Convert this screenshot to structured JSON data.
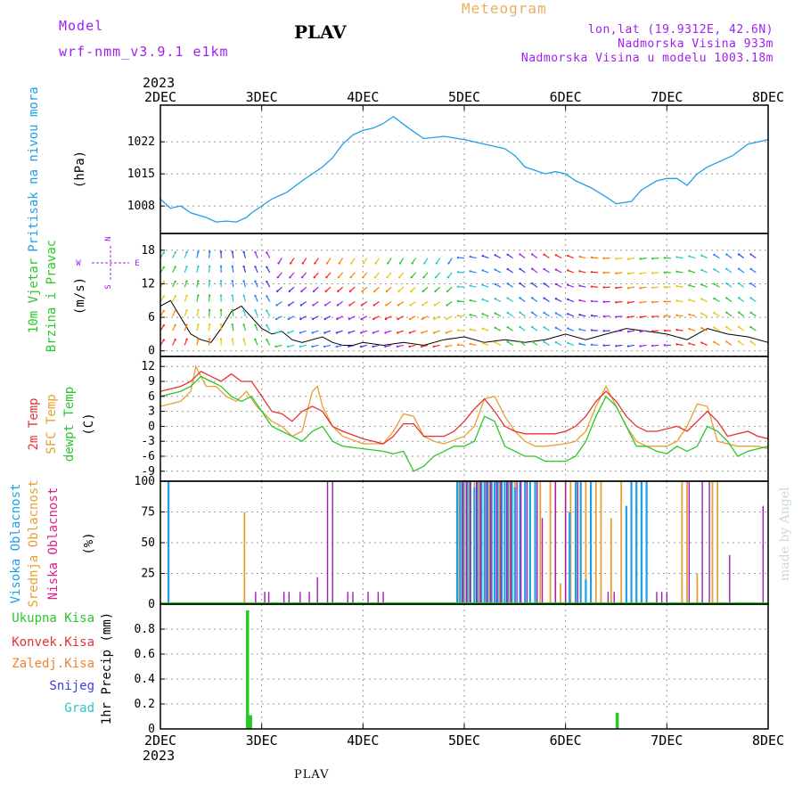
{
  "header": {
    "model_label": "Model",
    "model_name": "wrf-nmm_v3.9.1 e1km",
    "station": "PLAV",
    "meteogram_label": "Meteogram",
    "lonlat": "lon,lat (19.9312E, 42.6N)",
    "elevation": "Nadmorska Visina 933m",
    "model_elevation": "Nadmorska Visina u modelu 1003.18m"
  },
  "footer": {
    "station": "PLAV",
    "credit": "made by Angel"
  },
  "time_axis": {
    "year": "2023",
    "ticks": [
      "2DEC",
      "3DEC",
      "4DEC",
      "5DEC",
      "6DEC",
      "7DEC",
      "8DEC"
    ]
  },
  "colors": {
    "pressure": "#1ea0e6",
    "temp2m": "#e63232",
    "sfc": "#e6a032",
    "dewpt": "#28c828",
    "high_cloud": "#1ea0e6",
    "mid_cloud": "#e6a032",
    "low_cloud": "#a01eb4",
    "precip_total": "#28c828",
    "precip_conv": "#e63232",
    "precip_frozen": "#f08232",
    "snow": "#3c3ce6",
    "hail": "#28c8c8"
  },
  "legend": {
    "pressure_label": "Pritisak na nivou mora",
    "pressure_unit": "(hPa)",
    "wind_label1": "10m Vjetar",
    "wind_label2": "Brzina i Pravac",
    "wind_unit": "(m/s)",
    "compass_w": "W",
    "compass_e": "E",
    "compass_n": "N",
    "compass_s": "S",
    "temp2m_label": "2m Temp",
    "sfc_label": "SFC Temp",
    "dewpt_label": "dewpt Temp",
    "temp_unit": "(C)",
    "high_cloud_label": "Visoka Oblacnost",
    "mid_cloud_label": "Srednja Oblacnost",
    "low_cloud_label": "Niska Oblacnost",
    "cloud_unit": "(%)",
    "precip_total_label": "Ukupna Kisa",
    "precip_conv_label": "Konvek.Kisa",
    "precip_frozen_label": "Zaledj.Kisa",
    "snow_label": "Snijeg",
    "hail_label": "Grad",
    "precip_unit": "1hr Precip (mm)"
  },
  "chart_data": [
    {
      "type": "line",
      "panel": "pressure",
      "x_unit": "days since 2 DEC 2023 00UTC",
      "xlim": [
        0,
        6
      ],
      "ylim": [
        1002,
        1030
      ],
      "yticks": [
        "1008",
        "1015",
        "1022"
      ],
      "ytick_values": [
        1008,
        1015,
        1022
      ],
      "grid": true,
      "series": [
        {
          "name": "Pritisak na nivou mora",
          "x": [
            0,
            0.1,
            0.2,
            0.3,
            0.45,
            0.55,
            0.65,
            0.75,
            0.85,
            0.9,
            1.0,
            1.1,
            1.25,
            1.4,
            1.5,
            1.6,
            1.7,
            1.8,
            1.9,
            2.0,
            2.1,
            2.2,
            2.3,
            2.45,
            2.6,
            2.8,
            3.0,
            3.2,
            3.4,
            3.5,
            3.6,
            3.8,
            3.9,
            4.0,
            4.1,
            4.25,
            4.4,
            4.5,
            4.65,
            4.75,
            4.9,
            5.0,
            5.1,
            5.2,
            5.3,
            5.4,
            5.5,
            5.65,
            5.8,
            6.0
          ],
          "y": [
            1009.5,
            1007.5,
            1008,
            1006.5,
            1005.5,
            1004.5,
            1004.7,
            1004.5,
            1005.5,
            1006.5,
            1008,
            1009.5,
            1011,
            1013.5,
            1015,
            1016.5,
            1018.5,
            1021.5,
            1023.5,
            1024.5,
            1025,
            1026,
            1027.5,
            1025,
            1022.7,
            1023.2,
            1022.5,
            1021.5,
            1020.5,
            1019,
            1016.5,
            1015,
            1015.5,
            1015,
            1013.5,
            1012,
            1010,
            1008.5,
            1009,
            1011.5,
            1013.5,
            1014,
            1014,
            1012.5,
            1015,
            1016.5,
            1017.5,
            1019,
            1021.5,
            1022.5
          ]
        }
      ]
    },
    {
      "type": "scatter",
      "panel": "wind",
      "x_unit": "days since 2 DEC 2023 00UTC",
      "xlim": [
        0,
        6
      ],
      "ylim": [
        -1,
        21
      ],
      "yticks": [
        "0",
        "6",
        "12",
        "18"
      ],
      "ytick_values": [
        0,
        6,
        12,
        18
      ],
      "grid": true,
      "series": [
        {
          "name": "10m Vjetar",
          "x": [
            0,
            0.1,
            0.2,
            0.3,
            0.4,
            0.5,
            0.6,
            0.7,
            0.8,
            0.9,
            1.0,
            1.1,
            1.2,
            1.3,
            1.4,
            1.5,
            1.6,
            1.7,
            1.8,
            1.9,
            2.0,
            2.2,
            2.4,
            2.6,
            2.8,
            3.0,
            3.2,
            3.4,
            3.6,
            3.8,
            4.0,
            4.2,
            4.4,
            4.6,
            4.8,
            5.0,
            5.2,
            5.4,
            5.6,
            5.8,
            6.0
          ],
          "y": [
            8,
            9,
            6,
            3,
            2,
            1.5,
            4,
            7,
            8,
            6,
            4,
            3,
            3.5,
            2,
            1.5,
            2,
            2.5,
            1.5,
            1,
            1,
            1.5,
            1,
            1.5,
            1,
            2,
            2.5,
            1.5,
            2,
            1.5,
            2,
            3,
            2,
            3,
            4,
            3.5,
            3,
            2,
            4,
            3,
            2.5,
            1.5
          ]
        }
      ]
    },
    {
      "type": "line",
      "panel": "temperature",
      "x_unit": "days since 2 DEC 2023 00UTC",
      "xlim": [
        0,
        6
      ],
      "ylim": [
        -11,
        14
      ],
      "yticks": [
        "12",
        "9",
        "6",
        "3",
        "0",
        "-3",
        "-6",
        "-9"
      ],
      "ytick_values": [
        12,
        9,
        6,
        3,
        0,
        -3,
        -6,
        -9
      ],
      "grid": true,
      "series": [
        {
          "name": "2m Temp",
          "x": [
            0,
            0.1,
            0.2,
            0.3,
            0.4,
            0.5,
            0.6,
            0.7,
            0.8,
            0.9,
            1.0,
            1.1,
            1.2,
            1.3,
            1.4,
            1.5,
            1.6,
            1.7,
            1.8,
            2.0,
            2.2,
            2.3,
            2.4,
            2.5,
            2.6,
            2.7,
            2.8,
            2.9,
            3.0,
            3.1,
            3.2,
            3.3,
            3.4,
            3.5,
            3.6,
            3.7,
            3.8,
            3.9,
            4.0,
            4.1,
            4.2,
            4.3,
            4.4,
            4.5,
            4.6,
            4.7,
            4.8,
            4.9,
            5.0,
            5.1,
            5.2,
            5.3,
            5.4,
            5.5,
            5.6,
            5.7,
            5.8,
            5.9,
            6.0
          ],
          "y": [
            7,
            7.5,
            8,
            9,
            11,
            10,
            9,
            10.5,
            9,
            9,
            6,
            3,
            2.5,
            1,
            3,
            4,
            3,
            0,
            -1,
            -2.5,
            -3.5,
            -2,
            0.5,
            0.5,
            -2,
            -2,
            -2,
            -1,
            1,
            3.5,
            5.5,
            3,
            0,
            -1,
            -1.5,
            -1.5,
            -1.5,
            -1.5,
            -1,
            0,
            2,
            5,
            7,
            5,
            2,
            0,
            -1,
            -1,
            -0.5,
            0,
            -1,
            1,
            3,
            1,
            -2,
            -1.5,
            -1,
            -2,
            -2.5
          ]
        },
        {
          "name": "SFC Temp",
          "x": [
            0,
            0.1,
            0.2,
            0.3,
            0.35,
            0.45,
            0.55,
            0.65,
            0.75,
            0.85,
            0.95,
            1.0,
            1.1,
            1.2,
            1.3,
            1.4,
            1.5,
            1.55,
            1.6,
            1.7,
            1.8,
            2.0,
            2.2,
            2.3,
            2.4,
            2.5,
            2.6,
            2.7,
            2.8,
            3.0,
            3.1,
            3.2,
            3.3,
            3.4,
            3.5,
            3.6,
            3.7,
            3.8,
            4.0,
            4.1,
            4.2,
            4.3,
            4.4,
            4.5,
            4.6,
            4.7,
            4.8,
            5.0,
            5.1,
            5.2,
            5.3,
            5.4,
            5.5,
            5.6,
            5.7,
            5.9,
            6.0
          ],
          "y": [
            4,
            4.5,
            5,
            7,
            12,
            8,
            8,
            6,
            5,
            7,
            4,
            3,
            1,
            0,
            -2,
            -1,
            7,
            8,
            4,
            0,
            -2,
            -3.5,
            -3.5,
            -1,
            2.5,
            2,
            -2,
            -3,
            -3.5,
            -2,
            0,
            5.5,
            6,
            2,
            -1,
            -3,
            -4,
            -4,
            -3.5,
            -3,
            -1,
            4,
            8,
            4,
            0,
            -3,
            -4,
            -4,
            -3,
            0,
            4.5,
            4,
            -3,
            -3.5,
            -4,
            -4,
            -4.5
          ]
        },
        {
          "name": "dewpt Temp",
          "x": [
            0,
            0.1,
            0.2,
            0.3,
            0.4,
            0.5,
            0.6,
            0.7,
            0.8,
            0.9,
            1.0,
            1.1,
            1.2,
            1.3,
            1.4,
            1.5,
            1.6,
            1.7,
            1.8,
            2.0,
            2.2,
            2.3,
            2.4,
            2.5,
            2.6,
            2.7,
            2.8,
            2.9,
            3.0,
            3.1,
            3.2,
            3.3,
            3.4,
            3.5,
            3.6,
            3.7,
            3.8,
            4.0,
            4.1,
            4.2,
            4.3,
            4.4,
            4.5,
            4.6,
            4.7,
            4.8,
            4.9,
            5.0,
            5.1,
            5.2,
            5.3,
            5.4,
            5.5,
            5.6,
            5.7,
            5.8,
            5.9,
            6.0
          ],
          "y": [
            6,
            6.5,
            7,
            8,
            10,
            9,
            8,
            6,
            5,
            6,
            3,
            0,
            -1,
            -2,
            -3,
            -1,
            0,
            -3,
            -4,
            -4.5,
            -5,
            -5.5,
            -5,
            -9,
            -8,
            -6,
            -5,
            -4,
            -4,
            -3,
            2,
            1,
            -4,
            -5,
            -6,
            -6,
            -7,
            -7,
            -6,
            -3,
            2,
            6,
            4,
            0,
            -4,
            -4,
            -5,
            -5.5,
            -4,
            -5,
            -4,
            0,
            -1,
            -3,
            -6,
            -5,
            -4.5,
            -4
          ]
        }
      ]
    },
    {
      "type": "bar",
      "panel": "cloud",
      "x_unit": "days since 2 DEC 2023 00UTC",
      "xlim": [
        0,
        6
      ],
      "ylim": [
        0,
        100
      ],
      "yticks": [
        "0",
        "25",
        "50",
        "75",
        "100"
      ],
      "ytick_values": [
        0,
        25,
        50,
        75,
        100
      ],
      "grid": true,
      "series": [
        {
          "name": "Visoka Oblacnost",
          "x": [
            0.08,
            2.93,
            2.96,
            2.99,
            3.03,
            3.06,
            3.1,
            3.13,
            3.17,
            3.2,
            3.23,
            3.27,
            3.3,
            3.33,
            3.37,
            3.4,
            3.43,
            3.47,
            3.5,
            3.55,
            3.6,
            3.65,
            3.7,
            4.04,
            4.1,
            4.15,
            4.2,
            4.25,
            4.6,
            4.65,
            4.7,
            4.75,
            4.8
          ],
          "y": [
            100,
            100,
            100,
            100,
            100,
            100,
            95,
            100,
            100,
            100,
            100,
            100,
            100,
            100,
            100,
            100,
            100,
            100,
            95,
            100,
            100,
            100,
            100,
            75,
            100,
            100,
            20,
            100,
            80,
            100,
            100,
            100,
            100
          ]
        },
        {
          "name": "Srednja Oblacnost",
          "x": [
            0.83,
            2.95,
            3.0,
            3.05,
            3.1,
            3.15,
            3.2,
            3.25,
            3.3,
            3.35,
            3.4,
            3.45,
            3.5,
            3.55,
            3.6,
            3.65,
            3.7,
            3.75,
            3.85,
            3.9,
            3.95,
            4.0,
            4.05,
            4.1,
            4.2,
            4.25,
            4.3,
            4.35,
            4.45,
            4.55,
            4.65,
            4.7,
            4.75,
            4.8,
            5.15,
            5.2,
            5.3,
            5.45,
            5.5
          ],
          "y": [
            75,
            100,
            100,
            100,
            100,
            100,
            100,
            100,
            100,
            100,
            100,
            100,
            100,
            100,
            100,
            100,
            100,
            100,
            100,
            100,
            17,
            100,
            100,
            100,
            100,
            100,
            100,
            100,
            70,
            100,
            100,
            100,
            100,
            100,
            100,
            100,
            25,
            100,
            100
          ]
        },
        {
          "name": "Niska Oblacnost",
          "x": [
            0.94,
            1.03,
            1.07,
            1.22,
            1.27,
            1.38,
            1.47,
            1.55,
            1.65,
            1.7,
            1.85,
            1.9,
            2.05,
            2.15,
            2.2,
            2.98,
            3.02,
            3.06,
            3.12,
            3.16,
            3.22,
            3.26,
            3.32,
            3.36,
            3.42,
            3.46,
            3.52,
            3.56,
            3.62,
            3.72,
            3.77,
            3.9,
            4.0,
            4.12,
            4.42,
            4.48,
            4.9,
            4.95,
            5.0,
            5.22,
            5.35,
            5.42,
            5.62,
            5.95
          ],
          "y": [
            10,
            10,
            10,
            10,
            10,
            10,
            10,
            22,
            100,
            100,
            10,
            10,
            10,
            10,
            10,
            100,
            100,
            100,
            100,
            100,
            100,
            100,
            100,
            100,
            100,
            100,
            100,
            100,
            100,
            100,
            70,
            100,
            100,
            100,
            10,
            10,
            10,
            10,
            10,
            100,
            100,
            100,
            40,
            80
          ]
        }
      ]
    },
    {
      "type": "bar",
      "panel": "precip",
      "x_unit": "days since 2 DEC 2023 00UTC",
      "xlim": [
        0,
        6
      ],
      "ylim": [
        0,
        1.0
      ],
      "yticks": [
        "0",
        "0.2",
        "0.4",
        "0.6",
        "0.8"
      ],
      "ytick_values": [
        0,
        0.2,
        0.4,
        0.6,
        0.8
      ],
      "grid": true,
      "series": [
        {
          "name": "Ukupna Kisa",
          "x": [
            0.86,
            0.89,
            4.51
          ],
          "y": [
            0.95,
            0.11,
            0.13
          ]
        },
        {
          "name": "Konvek.Kisa",
          "x": [],
          "y": []
        },
        {
          "name": "Zaledj.Kisa",
          "x": [],
          "y": []
        },
        {
          "name": "Snijeg",
          "x": [],
          "y": []
        },
        {
          "name": "Grad",
          "x": [],
          "y": []
        }
      ]
    }
  ]
}
